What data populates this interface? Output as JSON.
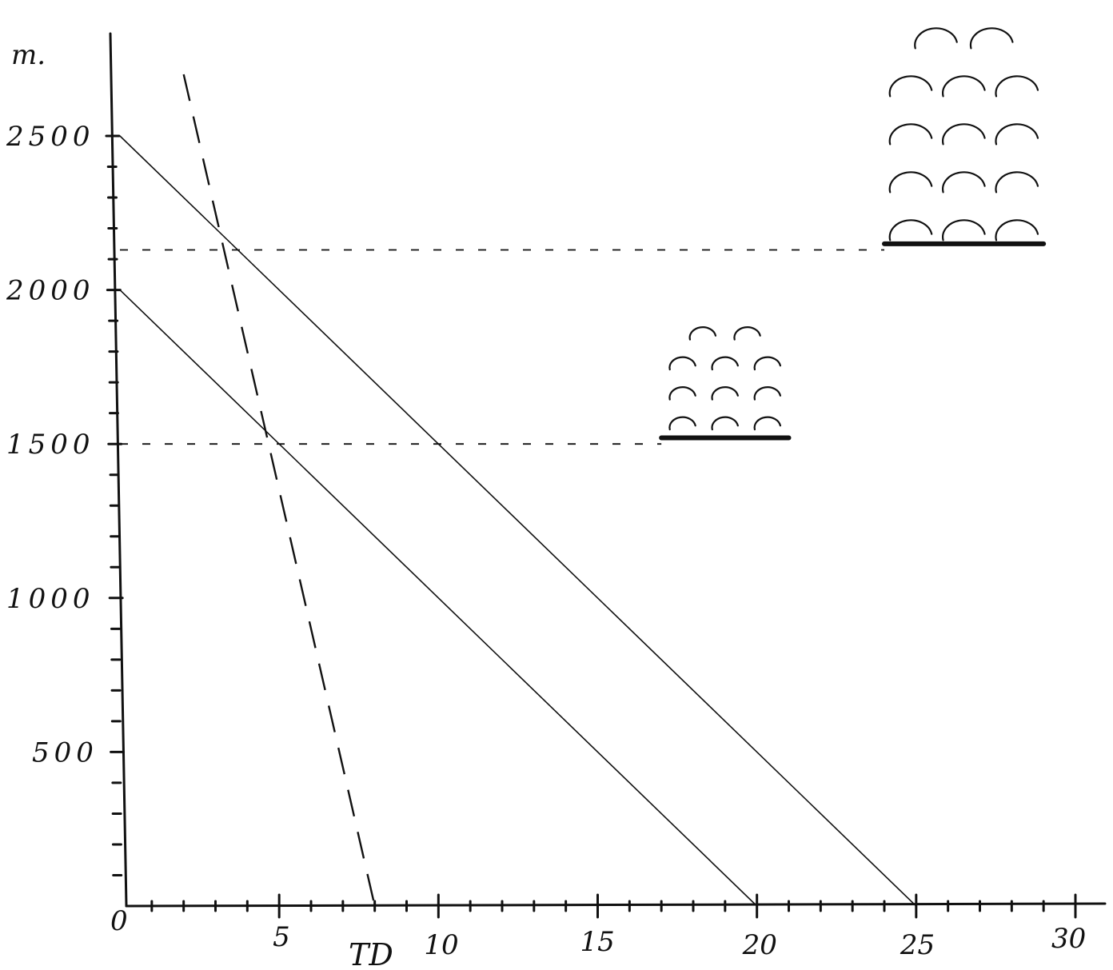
{
  "chart_data": {
    "type": "line",
    "title": "",
    "xlabel": "TD",
    "ylabel": "m.",
    "xlim": [
      0,
      30
    ],
    "ylim": [
      0,
      2500
    ],
    "x_ticks": [
      0,
      5,
      10,
      15,
      20,
      25,
      30
    ],
    "x_tick_labels": [
      "0",
      "5",
      "10",
      "15",
      "20",
      "25",
      "30"
    ],
    "y_ticks": [
      500,
      1000,
      1500,
      2000,
      2500
    ],
    "y_tick_labels": [
      "500",
      "1000",
      "1500",
      "2000",
      "2500"
    ],
    "grid": false,
    "legend": "none",
    "series": [
      {
        "style": "solid",
        "x": [
          0,
          20
        ],
        "y": [
          2000,
          0
        ]
      },
      {
        "style": "solid",
        "x": [
          0,
          25
        ],
        "y": [
          2500,
          0
        ]
      },
      {
        "style": "dashed",
        "x": [
          2,
          8
        ],
        "y": [
          2700,
          0
        ]
      }
    ],
    "reference_levels": [
      {
        "y": 2130,
        "x_end": 24
      },
      {
        "y": 1500,
        "x_end": 17
      }
    ],
    "annotations": [
      {
        "kind": "cumulus-cloud",
        "size": "large",
        "base_y": 2150,
        "x_range": [
          24,
          29
        ]
      },
      {
        "kind": "cumulus-cloud",
        "size": "small",
        "base_y": 1520,
        "x_range": [
          17,
          21
        ]
      }
    ]
  }
}
